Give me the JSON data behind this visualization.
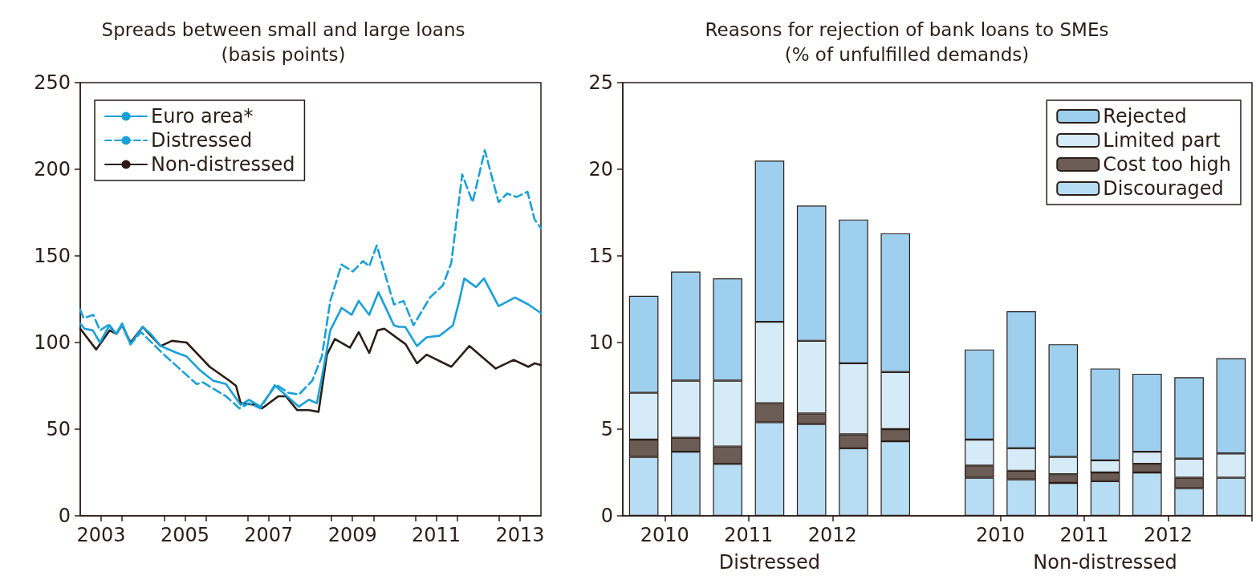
{
  "chart_data": [
    {
      "type": "line",
      "title": "Spreads between small and large loans",
      "subtitle": "(basis points)",
      "xlim": [
        2002.5,
        2013.5
      ],
      "ylim": [
        0,
        250
      ],
      "yticks": [
        0,
        50,
        100,
        150,
        200,
        250
      ],
      "xticks": [
        2003,
        {
          "value": 2003.5,
          "label": null
        },
        {
          "value": 2004.5,
          "label": null
        },
        2005,
        {
          "value": 2005.5,
          "label": null
        },
        {
          "value": 2006.5,
          "label": null
        },
        2007,
        {
          "value": 2007.5,
          "label": null
        },
        {
          "value": 2008.5,
          "label": null
        },
        2009,
        {
          "value": 2009.5,
          "label": null
        },
        {
          "value": 2010.5,
          "label": null
        },
        2011,
        {
          "value": 2011.5,
          "label": null
        },
        {
          "value": 2012.5,
          "label": null
        },
        2013
      ],
      "grid": false,
      "legend": "top left",
      "series": [
        {
          "name": "Euro area*",
          "color": "#1aa0d8",
          "line_style": "solid",
          "x": [
            2002.5,
            2002.6,
            2002.8,
            2002.97,
            2003.2,
            2003.36,
            2003.5,
            2003.7,
            2003.99,
            2004.18,
            2004.42,
            2004.81,
            2005.04,
            2005.36,
            2005.67,
            2005.98,
            2006.33,
            2006.53,
            2006.8,
            2007.16,
            2007.39,
            2007.72,
            2007.96,
            2008.15,
            2008.27,
            2008.47,
            2008.74,
            2008.98,
            2009.15,
            2009.4,
            2009.62,
            2009.99,
            2010.11,
            2010.26,
            2010.54,
            2010.77,
            2011.09,
            2011.4,
            2011.55,
            2011.67,
            2011.95,
            2012.14,
            2012.49,
            2012.88,
            2013.2,
            2013.5
          ],
          "values": [
            111,
            108,
            107,
            100,
            110,
            105,
            111,
            99,
            109,
            105,
            98,
            94,
            92,
            84,
            78,
            76,
            64,
            67,
            63,
            75,
            70,
            63,
            67,
            65,
            80,
            107,
            120,
            116,
            124,
            116,
            129,
            110,
            109,
            109,
            98,
            103,
            104,
            110,
            124,
            137,
            132,
            137,
            121,
            126,
            122,
            117
          ]
        },
        {
          "name": "Distressed",
          "color": "#1aa0d8",
          "line_style": "dashed",
          "x": [
            2002.5,
            2002.58,
            2002.81,
            2002.97,
            2003.16,
            2003.36,
            2003.5,
            2003.7,
            2003.95,
            2004.5,
            2005.28,
            2005.43,
            2005.98,
            2006.3,
            2006.53,
            2006.8,
            2007.16,
            2007.47,
            2007.72,
            2008.04,
            2008.27,
            2008.47,
            2008.74,
            2009.01,
            2009.25,
            2009.4,
            2009.58,
            2009.99,
            2010.22,
            2010.46,
            2010.85,
            2011.16,
            2011.36,
            2011.62,
            2011.87,
            2012.16,
            2012.49,
            2012.69,
            2012.92,
            2013.18,
            2013.35,
            2013.5
          ],
          "values": [
            119,
            114,
            116,
            107,
            110,
            105,
            110,
            99,
            106,
            93,
            76,
            77,
            69,
            62,
            65,
            62,
            76,
            71,
            70,
            78,
            92,
            124,
            145,
            141,
            147,
            144,
            156,
            122,
            124,
            110,
            126,
            133,
            146,
            197,
            181,
            211,
            181,
            186,
            184,
            187,
            171,
            166
          ]
        },
        {
          "name": "Non-distressed",
          "color": "#2b1d16",
          "line_style": "solid",
          "x": [
            2002.5,
            2002.88,
            2003.2,
            2003.36,
            2003.5,
            2003.7,
            2003.99,
            2004.42,
            2004.69,
            2005.04,
            2005.59,
            2006.06,
            2006.22,
            2006.33,
            2006.69,
            2006.84,
            2007.23,
            2007.41,
            2007.68,
            2007.96,
            2008.19,
            2008.39,
            2008.58,
            2008.94,
            2009.15,
            2009.4,
            2009.6,
            2009.76,
            2010.27,
            2010.54,
            2010.77,
            2011.36,
            2011.79,
            2012.42,
            2012.85,
            2013.2,
            2013.35,
            2013.5
          ],
          "values": [
            108,
            96,
            107,
            105,
            110,
            100,
            109,
            98,
            101,
            100,
            86,
            78,
            75,
            65,
            64,
            62,
            69,
            69,
            61,
            61,
            60,
            93,
            102,
            97,
            106,
            94,
            107,
            108,
            99,
            88,
            93,
            86,
            98,
            85,
            90,
            86,
            88,
            87
          ]
        }
      ]
    },
    {
      "type": "bar",
      "stacked": true,
      "title": "Reasons for rejection of bank loans to SMEs",
      "subtitle": "(% of unfulfilled demands)",
      "categories": [
        "2010",
        null,
        "2011",
        null,
        "2012",
        null,
        null,
        null,
        "2010",
        null,
        "2011",
        null,
        "2012",
        null,
        null
      ],
      "ylim": [
        0,
        25
      ],
      "yticks": [
        0,
        5,
        10,
        15,
        20,
        25
      ],
      "grid": false,
      "legend": "top right",
      "annotations": [
        "Distressed",
        "Non-distressed"
      ],
      "series": [
        {
          "name": "Discouraged",
          "color": "#b7ddf4",
          "values": [
            3.4,
            3.7,
            3.0,
            5.4,
            5.3,
            3.9,
            4.3,
            null,
            2.2,
            2.1,
            1.9,
            2.0,
            2.5,
            1.6,
            2.2
          ]
        },
        {
          "name": "Cost too high",
          "color": "#6b5d55",
          "values": [
            1.0,
            0.8,
            1.0,
            1.1,
            0.6,
            0.8,
            0.7,
            null,
            0.7,
            0.5,
            0.5,
            0.5,
            0.5,
            0.6,
            0
          ]
        },
        {
          "name": "Limited part",
          "color": "#d6ebf8",
          "values": [
            2.7,
            3.3,
            3.8,
            4.7,
            4.2,
            4.1,
            3.3,
            null,
            1.5,
            1.3,
            1.0,
            0.7,
            0.7,
            1.1,
            1.4
          ]
        },
        {
          "name": "Rejected",
          "color": "#9ecfee",
          "values": [
            5.6,
            6.3,
            5.9,
            9.3,
            7.8,
            8.3,
            8.0,
            null,
            5.2,
            7.9,
            6.5,
            5.3,
            4.5,
            4.7,
            5.5
          ]
        }
      ]
    }
  ]
}
